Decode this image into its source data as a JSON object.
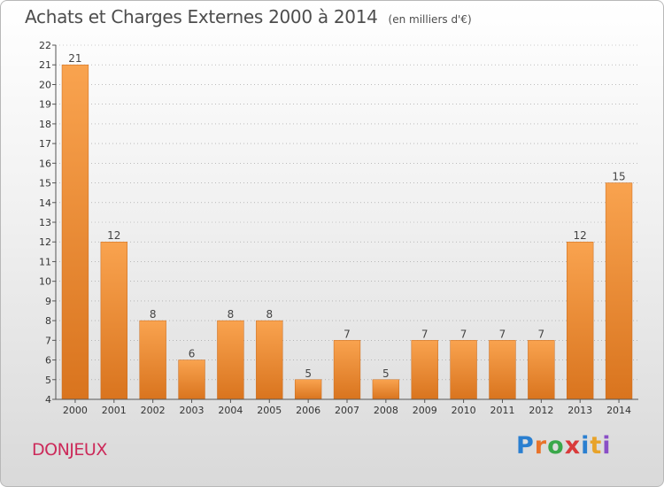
{
  "header": {
    "title": "Achats et Charges Externes 2000 à 2014",
    "unit": "(en milliers d'€)"
  },
  "footer": {
    "location": "DONJEUX",
    "logo": "Proxiti",
    "logo_colors": [
      "#2a7fd0",
      "#e8732a",
      "#3aa84a",
      "#d93a3a",
      "#2a7fd0",
      "#e8a32a",
      "#8a4fc6"
    ]
  },
  "colors": {
    "bar_light": "#f9a34f",
    "bar_dark": "#d9741e",
    "axis": "#555555",
    "grid": "#999999"
  },
  "chart_data": {
    "type": "bar",
    "title": "Achats et Charges Externes 2000 à 2014",
    "categories": [
      "2000",
      "2001",
      "2002",
      "2003",
      "2004",
      "2005",
      "2006",
      "2007",
      "2008",
      "2009",
      "2010",
      "2011",
      "2012",
      "2013",
      "2014"
    ],
    "values": [
      21,
      12,
      8,
      6,
      8,
      8,
      5,
      7,
      5,
      7,
      7,
      7,
      7,
      12,
      15
    ],
    "ylim": [
      4,
      22
    ],
    "yticks": [
      4,
      5,
      6,
      7,
      8,
      9,
      10,
      11,
      12,
      13,
      14,
      15,
      16,
      17,
      18,
      19,
      20,
      21,
      22
    ],
    "grid": true,
    "xlabel": "",
    "ylabel": ""
  }
}
